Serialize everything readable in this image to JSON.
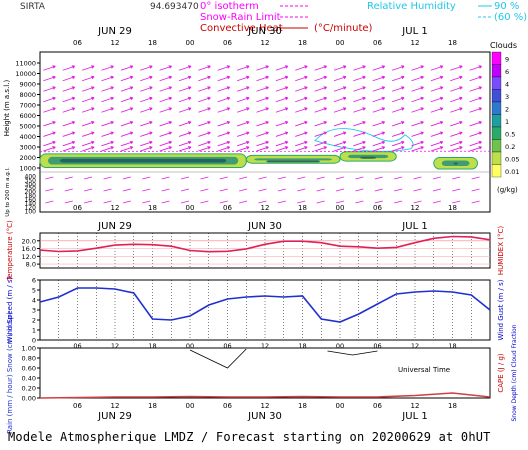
{
  "header": {
    "site": "SIRTA",
    "coords": "94.693470",
    "legend_isotherm": "0° isotherm",
    "legend_snow_rain": "Snow-Rain Limit",
    "legend_conv_heat": "Convective Heat",
    "legend_conv_units": "(°C/minute)",
    "legend_rh": "Relative Humidity",
    "legend_rh_90": "90 %",
    "legend_rh_60": "(60 %)",
    "clouds_label": "Clouds",
    "clouds_units": "(g/kg)",
    "clouds_scale": [
      "9",
      "6",
      "4",
      "3",
      "2",
      "1",
      "0.5",
      "0.2",
      "0.05",
      "0.01"
    ],
    "clouds_colors": [
      "#ff00ff",
      "#c000ff",
      "#7a4bff",
      "#3f4fd8",
      "#2f78d0",
      "#1e9e9e",
      "#2aaa6a",
      "#6fc24a",
      "#bde04a",
      "#ffff60"
    ]
  },
  "footer": {
    "text": "Modele Atmospherique LMDZ / Forecast starting on 20200629 at 0hUT"
  },
  "chart_data": [
    {
      "type": "heatmap",
      "panel": "clouds-and-wind",
      "day_labels": [
        "JUN 29",
        "JUN 30",
        "JUL  1"
      ],
      "hour_labels": [
        "06",
        "12",
        "18",
        "00",
        "06",
        "12",
        "18",
        "00",
        "06",
        "12",
        "18"
      ],
      "y_axis_label": "Height (m a.s.l.)",
      "y_axis_label_low": "Up to 200 m a.g.l.",
      "y_ticks_upper": [
        "11000",
        "10000",
        "9000",
        "8000",
        "7000",
        "6000",
        "5000",
        "4000",
        "3000",
        "2000",
        "1000"
      ],
      "y_ticks_lower": [
        "400",
        "350",
        "300",
        "250",
        "200",
        "180",
        "160",
        "140",
        "120",
        "100"
      ],
      "cloud_layers": [
        {
          "start_h": 0,
          "end_h": 33,
          "base_m": 1050,
          "top_m": 2350
        },
        {
          "start_h": 33,
          "end_h": 48,
          "base_m": 1450,
          "top_m": 2200
        },
        {
          "start_h": 48,
          "end_h": 57,
          "base_m": 1650,
          "top_m": 2550
        },
        {
          "start_h": 63,
          "end_h": 70,
          "base_m": 900,
          "top_m": 2000
        }
      ]
    },
    {
      "type": "line",
      "panel": "temperature",
      "y_axis_label": "Temperature (°C)",
      "y_axis_label_right": "HUMIDEX (°C)",
      "y_ticks": [
        "20.0",
        "16.0",
        "12.0",
        "8.0"
      ],
      "ylim": [
        6,
        24
      ],
      "x_hours": [
        0,
        3,
        6,
        9,
        12,
        15,
        18,
        21,
        24,
        27,
        30,
        33,
        36,
        39,
        42,
        45,
        48,
        51,
        54,
        57,
        60,
        63,
        66,
        69,
        72
      ],
      "series": [
        {
          "name": "Temperature",
          "values": [
            15.2,
            14.5,
            14.8,
            16.2,
            17.8,
            18.2,
            18.0,
            17.2,
            15.0,
            14.4,
            14.6,
            15.8,
            18.2,
            19.8,
            19.8,
            19.0,
            17.2,
            16.9,
            16.2,
            16.6,
            19.0,
            21.3,
            22.2,
            22.0,
            20.5
          ]
        }
      ]
    },
    {
      "type": "line",
      "panel": "wind",
      "y_axis_label": "Wind Speed (m / s)",
      "y_axis_label_right": "Wind Gust (m / s)",
      "y_ticks": [
        "6",
        "5",
        "4",
        "3",
        "2",
        "1",
        "0"
      ],
      "ylim": [
        0,
        6
      ],
      "x_hours": [
        0,
        3,
        6,
        9,
        12,
        15,
        18,
        21,
        24,
        27,
        30,
        33,
        36,
        39,
        42,
        45,
        48,
        51,
        54,
        57,
        60,
        63,
        66,
        69,
        72
      ],
      "series": [
        {
          "name": "Wind Speed",
          "values": [
            3.8,
            4.3,
            5.2,
            5.2,
            5.1,
            4.7,
            2.1,
            2.0,
            2.4,
            3.5,
            4.1,
            4.3,
            4.4,
            4.3,
            4.4,
            2.1,
            1.8,
            2.6,
            3.6,
            4.6,
            4.8,
            4.9,
            4.8,
            4.5,
            3.0
          ]
        }
      ]
    },
    {
      "type": "line",
      "panel": "precipitation",
      "y_axis_label": "Rain (mm / hour) Snow (cm / hour)",
      "y_axis_label_right": "CAPE (J / g)",
      "y_axis_label_right2": "Snow Depth (cm) Cloud Fraction",
      "y_ticks": [
        "1.00",
        "0.80",
        "0.60",
        "0.40",
        "0.20",
        "0.00"
      ],
      "ylim": [
        0,
        1
      ],
      "x_hours": [
        0,
        6,
        12,
        18,
        24,
        30,
        36,
        42,
        48,
        54,
        60,
        66,
        72
      ],
      "series": [
        {
          "name": "Precipitation",
          "values": [
            0.0,
            0.01,
            0.02,
            0.02,
            0.03,
            0.02,
            0.02,
            0.03,
            0.02,
            0.02,
            0.05,
            0.1,
            0.02
          ]
        }
      ],
      "xlabel": "Universal Time"
    }
  ]
}
